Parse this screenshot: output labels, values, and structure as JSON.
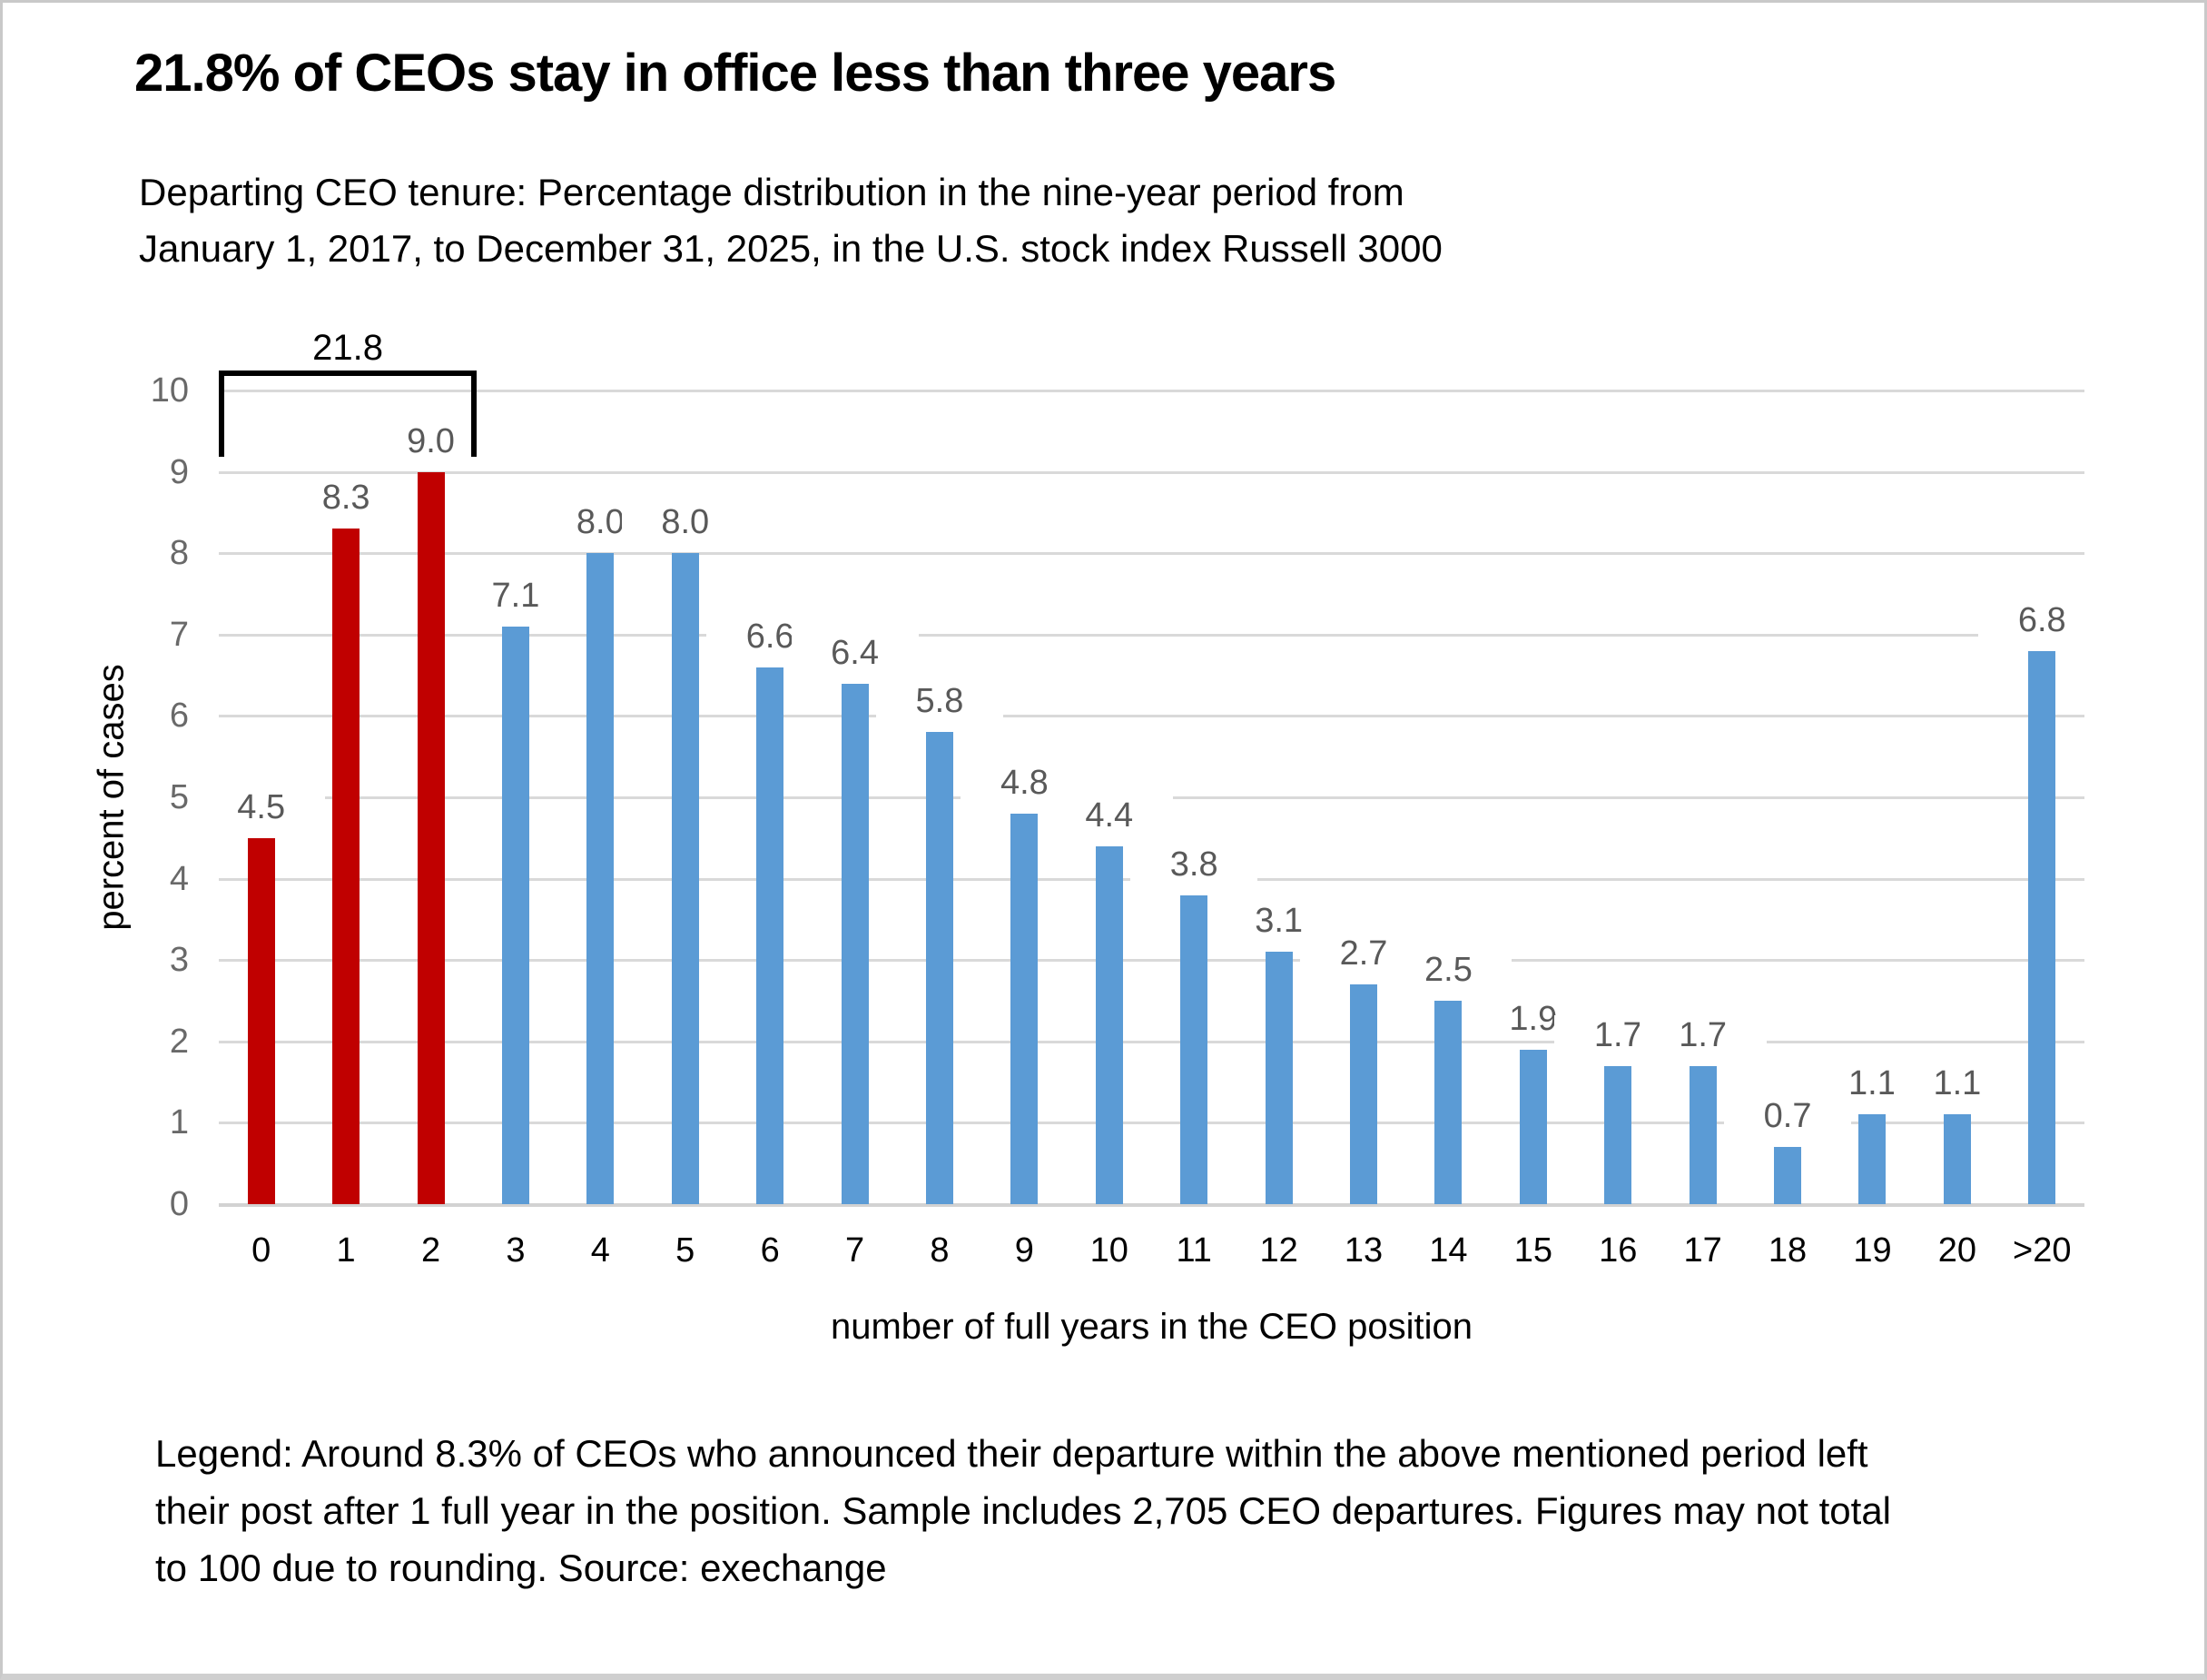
{
  "title": "21.8% of CEOs stay in office less than three years",
  "subtitle_lines": [
    "Departing CEO tenure: Percentage distribution in the nine-year period from",
    "January 1, 2017, to December 31, 2025, in the U.S. stock index Russell 3000"
  ],
  "legend_lines": [
    "Legend: Around 8.3% of CEOs who announced their departure within the above mentioned period left",
    "their post after 1 full year in the position. Sample includes 2,705 CEO departures. Figures may not total",
    "to 100 due to rounding. Source: exechange"
  ],
  "chart_data": {
    "type": "bar",
    "categories": [
      "0",
      "1",
      "2",
      "3",
      "4",
      "5",
      "6",
      "7",
      "8",
      "9",
      "10",
      "11",
      "12",
      "13",
      "14",
      "15",
      "16",
      "17",
      "18",
      "19",
      "20",
      ">20"
    ],
    "values": [
      4.5,
      8.3,
      9.0,
      7.1,
      8.0,
      8.0,
      6.6,
      6.4,
      5.8,
      4.8,
      4.4,
      3.8,
      3.1,
      2.7,
      2.5,
      1.9,
      1.7,
      1.7,
      0.7,
      1.1,
      1.1,
      6.8
    ],
    "title": "21.8% of CEOs stay in office less than three years",
    "xlabel": "number of full years in the CEO position",
    "ylabel": "percent of cases",
    "ylim": [
      0,
      10
    ],
    "ytick_step": 1,
    "grid": true,
    "legend_position": "none",
    "highlight_count": 3,
    "colors": {
      "highlight_bar": "#c00000",
      "default_bar": "#5b9bd5",
      "gridline": "#d9d9d9",
      "data_label": "#595959",
      "y_tick_label": "#696969",
      "x_tick_label": "#000000"
    },
    "annotation": {
      "label": "21.8",
      "span_category_start": "0",
      "span_category_end": "2",
      "note": "black square bracket over the three red bars"
    }
  }
}
